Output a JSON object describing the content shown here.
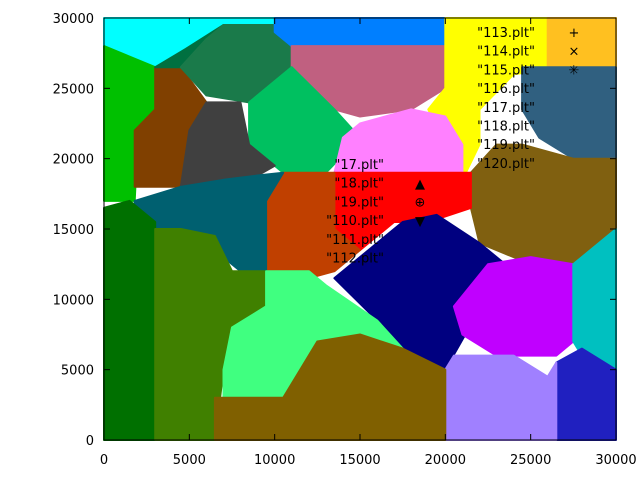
{
  "chart_data": {
    "type": "scatter",
    "xlim": [
      0,
      30000
    ],
    "ylim": [
      0,
      30000
    ],
    "x_ticks": [
      "0",
      "5000",
      "10000",
      "15000",
      "20000",
      "25000",
      "30000"
    ],
    "y_ticks": [
      "0",
      "5000",
      "10000",
      "15000",
      "20000",
      "25000",
      "30000"
    ],
    "grid": false,
    "legend_position": "top-right",
    "legend_left": [
      {
        "name": "\"17.plt\"",
        "color": "#ff0000"
      },
      {
        "name": "\"18.plt\"",
        "color": "#ff0000"
      },
      {
        "name": "\"19.plt\"",
        "color": "#ff0000"
      },
      {
        "name": "\"110.plt\"",
        "color": "#ff0000"
      },
      {
        "name": "\"111.plt\"",
        "color": "#ff0000"
      },
      {
        "name": "\"112.plt\"",
        "color": "#ff0000"
      }
    ],
    "legend_right": [
      {
        "name": "\"113.plt\"",
        "marker": "+",
        "color": "#22aa22"
      },
      {
        "name": "\"114.plt\"",
        "marker": "×",
        "color": "#22aa22"
      },
      {
        "name": "\"115.plt\"",
        "marker": "✳",
        "color": "#22aa22"
      },
      {
        "name": "\"116.plt\"",
        "marker": "",
        "color": "#22aa22"
      },
      {
        "name": "\"117.plt\"",
        "marker": "",
        "color": "#22aa22"
      },
      {
        "name": "\"118.plt\"",
        "marker": "",
        "color": "#22aa22"
      },
      {
        "name": "\"119.plt\"",
        "marker": "",
        "color": "#22aa22"
      },
      {
        "name": "\"120.plt\"",
        "marker": "",
        "color": "#22aa22"
      }
    ],
    "legend_left_markers": [
      {
        "marker": "▲",
        "color": "#ffaa00"
      },
      {
        "marker": "⊕",
        "color": "#22aa22"
      },
      {
        "marker": "▼",
        "color": "#ff77ff"
      }
    ],
    "regions": [
      {
        "color": "#00ffff",
        "points": [
          [
            0,
            30000
          ],
          [
            10000,
            30000
          ],
          [
            10000,
            28000
          ],
          [
            7000,
            26000
          ],
          [
            3000,
            26500
          ],
          [
            0,
            28000
          ]
        ]
      },
      {
        "color": "#00c000",
        "points": [
          [
            0,
            28000
          ],
          [
            3000,
            26500
          ],
          [
            3000,
            23500
          ],
          [
            2000,
            22000
          ],
          [
            1800,
            17000
          ],
          [
            0,
            17000
          ]
        ]
      },
      {
        "color": "#804000",
        "points": [
          [
            3000,
            26500
          ],
          [
            4500,
            26500
          ],
          [
            6000,
            24000
          ],
          [
            6000,
            22000
          ],
          [
            4500,
            18000
          ],
          [
            1800,
            18000
          ],
          [
            1800,
            22000
          ],
          [
            3000,
            23500
          ]
        ]
      },
      {
        "color": "#007040",
        "points": [
          [
            3000,
            26500
          ],
          [
            7000,
            26500
          ],
          [
            10000,
            28000
          ],
          [
            10000,
            29500
          ],
          [
            7000,
            29500
          ],
          [
            4800,
            27800
          ]
        ]
      },
      {
        "color": "#1a7a4a",
        "points": [
          [
            4500,
            26500
          ],
          [
            6000,
            28500
          ],
          [
            7000,
            29500
          ],
          [
            10000,
            29500
          ],
          [
            11000,
            28000
          ],
          [
            11000,
            26500
          ],
          [
            8500,
            24000
          ],
          [
            6000,
            24500
          ]
        ]
      },
      {
        "color": "#007fff",
        "points": [
          [
            10000,
            30000
          ],
          [
            20000,
            30000
          ],
          [
            20000,
            28000
          ],
          [
            16000,
            28000
          ],
          [
            13000,
            28000
          ],
          [
            11000,
            28000
          ],
          [
            10000,
            29000
          ]
        ]
      },
      {
        "color": "#c06080",
        "points": [
          [
            11000,
            28000
          ],
          [
            11000,
            26000
          ],
          [
            13500,
            23500
          ],
          [
            15000,
            23000
          ],
          [
            18000,
            23500
          ],
          [
            20000,
            25000
          ],
          [
            20000,
            28000
          ],
          [
            16000,
            28000
          ]
        ]
      },
      {
        "color": "#00c060",
        "points": [
          [
            8500,
            24000
          ],
          [
            11000,
            26500
          ],
          [
            13500,
            23500
          ],
          [
            15000,
            21500
          ],
          [
            13000,
            19000
          ],
          [
            10500,
            19000
          ],
          [
            8500,
            21000
          ]
        ]
      },
      {
        "color": "#404040",
        "points": [
          [
            4500,
            18000
          ],
          [
            5000,
            22000
          ],
          [
            6000,
            24000
          ],
          [
            8000,
            24000
          ],
          [
            8500,
            21000
          ],
          [
            10000,
            19500
          ],
          [
            9000,
            18800
          ],
          [
            7000,
            18500
          ]
        ]
      },
      {
        "color": "#ffff00",
        "points": [
          [
            20000,
            30000
          ],
          [
            27000,
            30000
          ],
          [
            27000,
            26500
          ],
          [
            24000,
            26000
          ],
          [
            22000,
            23500
          ],
          [
            22000,
            21000
          ],
          [
            21000,
            18500
          ],
          [
            18000,
            18500
          ],
          [
            20000,
            21000
          ],
          [
            19000,
            23500
          ],
          [
            20000,
            25000
          ]
        ]
      },
      {
        "color": "#ffc020",
        "points": [
          [
            26000,
            30000
          ],
          [
            30000,
            30000
          ],
          [
            30000,
            26500
          ],
          [
            26000,
            26500
          ]
        ]
      },
      {
        "color": "#306080",
        "points": [
          [
            24500,
            26500
          ],
          [
            30000,
            26500
          ],
          [
            30000,
            20000
          ],
          [
            27500,
            20000
          ],
          [
            25500,
            21500
          ],
          [
            24500,
            23500
          ]
        ]
      },
      {
        "color": "#ff80ff",
        "points": [
          [
            14000,
            21500
          ],
          [
            15000,
            22500
          ],
          [
            18000,
            23500
          ],
          [
            20000,
            23000
          ],
          [
            21000,
            21000
          ],
          [
            21000,
            18500
          ],
          [
            18000,
            18500
          ],
          [
            15000,
            18500
          ],
          [
            13500,
            19000
          ]
        ]
      },
      {
        "color": "#806010",
        "points": [
          [
            21500,
            19000
          ],
          [
            23000,
            21000
          ],
          [
            24500,
            21000
          ],
          [
            27500,
            20000
          ],
          [
            30000,
            20000
          ],
          [
            30000,
            15000
          ],
          [
            28000,
            12500
          ],
          [
            25000,
            12500
          ],
          [
            22000,
            14000
          ],
          [
            21500,
            16500
          ]
        ]
      },
      {
        "color": "#ff0000",
        "points": [
          [
            13500,
            19000
          ],
          [
            21500,
            19000
          ],
          [
            21500,
            16500
          ],
          [
            19000,
            15500
          ],
          [
            17000,
            15500
          ],
          [
            15000,
            13500
          ],
          [
            13500,
            15000
          ]
        ]
      },
      {
        "color": "#c04000",
        "points": [
          [
            10500,
            19000
          ],
          [
            13500,
            19000
          ],
          [
            13500,
            15000
          ],
          [
            15000,
            13500
          ],
          [
            13500,
            12000
          ],
          [
            12000,
            11500
          ],
          [
            9500,
            11500
          ],
          [
            9500,
            17000
          ]
        ]
      },
      {
        "color": "#006070",
        "points": [
          [
            1800,
            17000
          ],
          [
            4500,
            18000
          ],
          [
            7000,
            18500
          ],
          [
            9000,
            18800
          ],
          [
            10500,
            19000
          ],
          [
            9500,
            17000
          ],
          [
            9500,
            12000
          ],
          [
            8500,
            11500
          ],
          [
            7500,
            12500
          ],
          [
            5000,
            15000
          ],
          [
            1800,
            15000
          ]
        ]
      },
      {
        "color": "#000080",
        "points": [
          [
            13500,
            11500
          ],
          [
            17500,
            15500
          ],
          [
            19500,
            16000
          ],
          [
            22000,
            14000
          ],
          [
            23500,
            12500
          ],
          [
            20000,
            5000
          ],
          [
            17500,
            6500
          ],
          [
            16000,
            8500
          ]
        ]
      },
      {
        "color": "#c000ff",
        "points": [
          [
            22500,
            12500
          ],
          [
            25000,
            13000
          ],
          [
            27500,
            12500
          ],
          [
            27500,
            7000
          ],
          [
            26500,
            6000
          ],
          [
            23000,
            6000
          ],
          [
            21000,
            7500
          ],
          [
            20500,
            9500
          ]
        ]
      },
      {
        "color": "#00c0c0",
        "points": [
          [
            27500,
            12500
          ],
          [
            30000,
            15000
          ],
          [
            30000,
            5000
          ],
          [
            28000,
            6000
          ],
          [
            27500,
            7000
          ]
        ]
      },
      {
        "color": "#2020c0",
        "points": [
          [
            26500,
            0
          ],
          [
            30000,
            0
          ],
          [
            30000,
            5000
          ],
          [
            28000,
            6500
          ],
          [
            26500,
            5500
          ]
        ]
      },
      {
        "color": "#a080ff",
        "points": [
          [
            20000,
            0
          ],
          [
            26500,
            0
          ],
          [
            26500,
            5500
          ],
          [
            26000,
            4500
          ],
          [
            24000,
            6000
          ],
          [
            20500,
            6000
          ],
          [
            20000,
            5000
          ]
        ]
      },
      {
        "color": "#007000",
        "points": [
          [
            0,
            0
          ],
          [
            3000,
            0
          ],
          [
            3000,
            15500
          ],
          [
            1500,
            17000
          ],
          [
            0,
            16500
          ]
        ]
      },
      {
        "color": "#408000",
        "points": [
          [
            3000,
            0
          ],
          [
            6500,
            0
          ],
          [
            7000,
            5000
          ],
          [
            7500,
            8000
          ],
          [
            9500,
            9500
          ],
          [
            9500,
            12000
          ],
          [
            7500,
            12000
          ],
          [
            6500,
            14500
          ],
          [
            4500,
            15000
          ],
          [
            3000,
            15000
          ]
        ]
      },
      {
        "color": "#40ff80",
        "points": [
          [
            7000,
            3000
          ],
          [
            17000,
            3000
          ],
          [
            17500,
            6500
          ],
          [
            16000,
            8500
          ],
          [
            13000,
            11000
          ],
          [
            12000,
            12000
          ],
          [
            9500,
            12000
          ],
          [
            9500,
            9500
          ],
          [
            7500,
            8000
          ],
          [
            7000,
            5000
          ]
        ]
      },
      {
        "color": "#806000",
        "points": [
          [
            6500,
            0
          ],
          [
            20000,
            0
          ],
          [
            20000,
            5000
          ],
          [
            17500,
            6500
          ],
          [
            15000,
            7500
          ],
          [
            12500,
            7000
          ],
          [
            10500,
            3000
          ],
          [
            6500,
            3000
          ]
        ]
      }
    ]
  }
}
